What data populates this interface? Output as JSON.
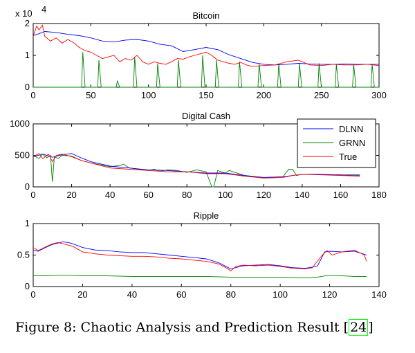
{
  "caption": {
    "prefix": "Figure 8: Chaotic Analysis and Prediction Result [",
    "ref": "24",
    "suffix": "]"
  },
  "colors": {
    "DLNN": "#0000ff",
    "GRNN": "#008000",
    "True": "#ff0000"
  },
  "chart_data": [
    {
      "type": "line",
      "title": "Bitcoin",
      "exponent_label": "x 10",
      "exponent_power": "4",
      "xlim": [
        0,
        300
      ],
      "ylim": [
        0,
        2
      ],
      "xticks": [
        0,
        50,
        100,
        150,
        200,
        250,
        300
      ],
      "yticks": [
        0,
        1,
        2
      ],
      "xtick_labels": [
        "0",
        "50",
        "100",
        "150",
        "200",
        "250",
        "300"
      ],
      "ytick_labels": [
        "0",
        "1",
        "2"
      ],
      "series": [
        {
          "name": "DLNN",
          "x": [
            0,
            5,
            10,
            20,
            30,
            40,
            50,
            60,
            70,
            80,
            90,
            100,
            110,
            120,
            130,
            140,
            150,
            160,
            170,
            180,
            190,
            200,
            210,
            220,
            230,
            240,
            250,
            260,
            270,
            280,
            290,
            300
          ],
          "y": [
            1.62,
            1.68,
            1.75,
            1.72,
            1.66,
            1.62,
            1.55,
            1.45,
            1.42,
            1.48,
            1.5,
            1.45,
            1.35,
            1.3,
            1.12,
            1.18,
            1.25,
            1.18,
            1.02,
            0.9,
            0.78,
            0.72,
            0.7,
            0.72,
            0.75,
            0.73,
            0.72,
            0.72,
            0.73,
            0.72,
            0.72,
            0.72
          ]
        },
        {
          "name": "GRNN",
          "x": [
            0,
            42,
            43,
            45,
            56,
            57,
            59,
            72,
            73,
            75,
            87,
            88,
            90,
            107,
            108,
            110,
            125,
            126,
            128,
            146,
            147,
            149,
            158,
            159,
            161,
            178,
            179,
            181,
            195,
            196,
            198,
            212,
            213,
            215,
            230,
            231,
            233,
            247,
            248,
            250,
            262,
            263,
            265,
            277,
            278,
            280,
            293,
            294,
            296,
            300
          ],
          "y": [
            0,
            0,
            1.1,
            0,
            0,
            0.85,
            0,
            0,
            0.2,
            0,
            0,
            0.95,
            0,
            0,
            0.75,
            0,
            0,
            0.85,
            0,
            0,
            1.0,
            0,
            0,
            0.85,
            0,
            0,
            0.8,
            0,
            0,
            0.75,
            0,
            0,
            0.75,
            0,
            0,
            0.75,
            0,
            0,
            0.75,
            0,
            0,
            0.72,
            0,
            0,
            0.72,
            0,
            0,
            0.72,
            0,
            0
          ]
        },
        {
          "name": "True",
          "x": [
            0,
            3,
            5,
            8,
            10,
            15,
            20,
            25,
            30,
            35,
            40,
            45,
            50,
            55,
            60,
            65,
            70,
            75,
            80,
            85,
            90,
            95,
            100,
            105,
            110,
            115,
            120,
            125,
            130,
            135,
            140,
            145,
            150,
            155,
            160,
            165,
            170,
            175,
            180,
            185,
            190,
            200,
            210,
            220,
            230,
            240,
            250,
            260,
            270,
            280,
            290,
            300
          ],
          "y": [
            1.6,
            1.92,
            1.8,
            1.95,
            1.6,
            1.45,
            1.55,
            1.38,
            1.5,
            1.4,
            1.25,
            1.15,
            1.1,
            1.0,
            0.9,
            0.95,
            1.0,
            0.8,
            0.9,
            0.85,
            1.0,
            0.8,
            0.72,
            0.8,
            0.75,
            0.72,
            0.8,
            0.9,
            0.88,
            0.95,
            1.0,
            1.05,
            1.1,
            1.0,
            0.85,
            0.8,
            0.75,
            0.72,
            0.78,
            0.7,
            0.65,
            0.68,
            0.7,
            0.8,
            0.85,
            0.7,
            0.68,
            0.72,
            0.7,
            0.7,
            0.72,
            0.68
          ]
        }
      ]
    },
    {
      "type": "line",
      "title": "Digital Cash",
      "xlim": [
        0,
        180
      ],
      "ylim": [
        0,
        1000
      ],
      "xticks": [
        0,
        20,
        40,
        60,
        80,
        100,
        120,
        140,
        160,
        180
      ],
      "yticks": [
        0,
        500,
        1000
      ],
      "xtick_labels": [
        "0",
        "20",
        "40",
        "60",
        "80",
        "100",
        "120",
        "140",
        "160",
        "180"
      ],
      "ytick_labels": [
        "0",
        "500",
        "1000"
      ],
      "legend": {
        "location": "top-right",
        "entries": [
          "DLNN",
          "GRNN",
          "True"
        ]
      },
      "series": [
        {
          "name": "DLNN",
          "x": [
            0,
            5,
            10,
            15,
            20,
            25,
            30,
            40,
            50,
            60,
            70,
            80,
            90,
            100,
            110,
            120,
            130,
            135,
            140,
            150,
            160,
            170
          ],
          "y": [
            480,
            520,
            470,
            510,
            530,
            460,
            400,
            330,
            300,
            270,
            260,
            240,
            220,
            220,
            180,
            150,
            160,
            180,
            200,
            200,
            190,
            190
          ]
        },
        {
          "name": "GRNN",
          "x": [
            0,
            3,
            5,
            7,
            9,
            10,
            11,
            13,
            15,
            20,
            25,
            30,
            40,
            45,
            47,
            50,
            60,
            63,
            66,
            70,
            75,
            80,
            85,
            90,
            93,
            94,
            96,
            100,
            102,
            105,
            110,
            120,
            130,
            133,
            135,
            137,
            140,
            150,
            160,
            170
          ],
          "y": [
            500,
            450,
            520,
            460,
            500,
            80,
            480,
            450,
            500,
            490,
            420,
            380,
            320,
            340,
            360,
            300,
            260,
            280,
            250,
            270,
            260,
            230,
            270,
            240,
            0,
            0,
            260,
            220,
            260,
            230,
            180,
            150,
            160,
            280,
            280,
            180,
            200,
            200,
            190,
            180
          ]
        },
        {
          "name": "True",
          "x": [
            0,
            3,
            5,
            8,
            10,
            12,
            15,
            20,
            25,
            30,
            40,
            50,
            60,
            70,
            80,
            90,
            100,
            110,
            120,
            130,
            135,
            140,
            150,
            160,
            170
          ],
          "y": [
            480,
            530,
            450,
            520,
            400,
            500,
            520,
            480,
            420,
            380,
            300,
            280,
            260,
            240,
            240,
            210,
            210,
            170,
            140,
            150,
            180,
            200,
            190,
            180,
            170
          ]
        }
      ]
    },
    {
      "type": "line",
      "title": "Ripple",
      "xlim": [
        0,
        140
      ],
      "ylim": [
        0,
        1
      ],
      "xticks": [
        0,
        20,
        40,
        60,
        80,
        100,
        120,
        140
      ],
      "yticks": [
        0,
        0.5,
        1
      ],
      "xtick_labels": [
        "0",
        "20",
        "40",
        "60",
        "80",
        "100",
        "120",
        "140"
      ],
      "ytick_labels": [
        "0",
        "0.5",
        "1"
      ],
      "series": [
        {
          "name": "DLNN",
          "x": [
            0,
            2,
            4,
            6,
            8,
            10,
            12,
            14,
            16,
            20,
            25,
            30,
            35,
            40,
            45,
            50,
            55,
            60,
            65,
            70,
            75,
            80,
            85,
            90,
            95,
            100,
            105,
            110,
            115,
            118,
            120,
            125,
            130,
            135
          ],
          "y": [
            0.58,
            0.56,
            0.6,
            0.64,
            0.67,
            0.69,
            0.71,
            0.7,
            0.68,
            0.62,
            0.58,
            0.57,
            0.55,
            0.54,
            0.54,
            0.52,
            0.5,
            0.48,
            0.46,
            0.44,
            0.38,
            0.28,
            0.33,
            0.34,
            0.35,
            0.33,
            0.3,
            0.29,
            0.32,
            0.55,
            0.56,
            0.55,
            0.56,
            0.5
          ]
        },
        {
          "name": "GRNN",
          "x": [
            0,
            5,
            10,
            15,
            20,
            30,
            40,
            50,
            60,
            70,
            80,
            90,
            100,
            110,
            115,
            120,
            125,
            130,
            135
          ],
          "y": [
            0.17,
            0.17,
            0.18,
            0.18,
            0.17,
            0.17,
            0.16,
            0.16,
            0.16,
            0.16,
            0.15,
            0.15,
            0.15,
            0.14,
            0.15,
            0.18,
            0.17,
            0.16,
            0.16
          ]
        },
        {
          "name": "True",
          "x": [
            0,
            2,
            4,
            6,
            8,
            10,
            12,
            14,
            16,
            20,
            25,
            30,
            35,
            40,
            45,
            50,
            55,
            60,
            65,
            70,
            75,
            78,
            80,
            82,
            85,
            90,
            95,
            100,
            105,
            110,
            113,
            115,
            117,
            119,
            121,
            125,
            130,
            134,
            135
          ],
          "y": [
            0.62,
            0.57,
            0.61,
            0.65,
            0.68,
            0.7,
            0.68,
            0.66,
            0.64,
            0.55,
            0.52,
            0.5,
            0.49,
            0.48,
            0.48,
            0.47,
            0.45,
            0.44,
            0.42,
            0.4,
            0.36,
            0.3,
            0.25,
            0.32,
            0.34,
            0.33,
            0.34,
            0.32,
            0.29,
            0.28,
            0.3,
            0.4,
            0.5,
            0.57,
            0.5,
            0.55,
            0.58,
            0.5,
            0.4
          ]
        }
      ]
    }
  ]
}
